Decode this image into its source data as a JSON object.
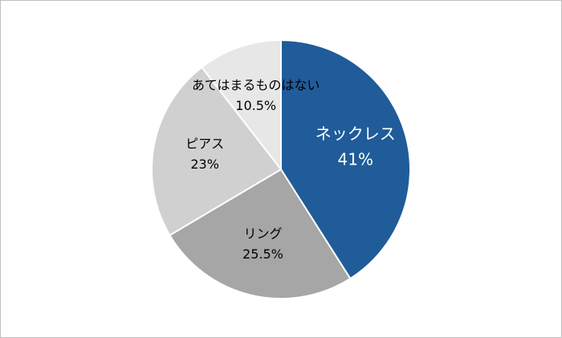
{
  "chart_data": {
    "type": "pie",
    "categories": [
      "ネックレス",
      "リング",
      "ピアス",
      "あてはまるものはない"
    ],
    "values": [
      41,
      25.5,
      23,
      10.5
    ],
    "value_labels": [
      "41%",
      "25.5%",
      "23%",
      "10.5%"
    ],
    "colors": [
      "#1f5c99",
      "#a6a6a6",
      "#d0d0d0",
      "#e7e7e7"
    ]
  }
}
